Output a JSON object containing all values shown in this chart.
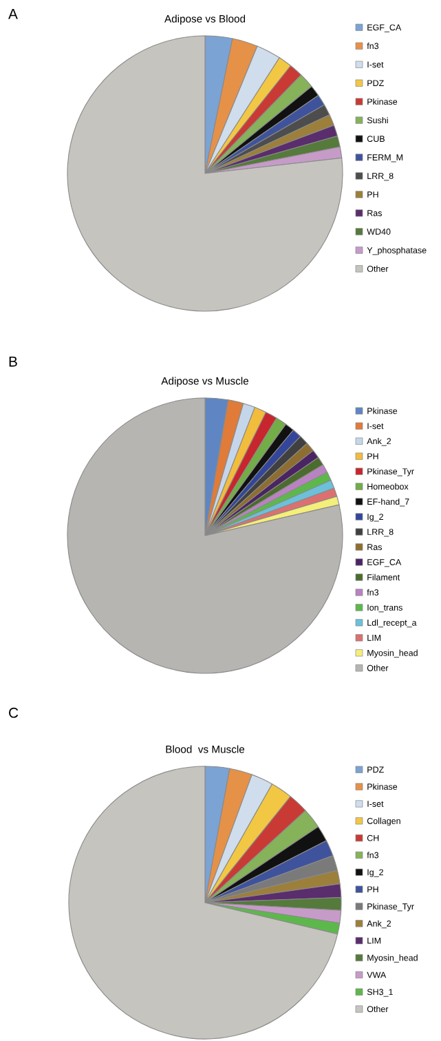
{
  "chart_data": [
    {
      "type": "pie",
      "title": "Adipose vs Blood",
      "annotations": [
        "A"
      ],
      "legend": "right",
      "categories": [
        "EGF_CA",
        "fn3",
        "I-set",
        "PDZ",
        "Pkinase",
        "Sushi",
        "CUB",
        "FERM_M",
        "LRR_8",
        "PH",
        "Ras",
        "WD40",
        "Y_phosphatase",
        "Other"
      ],
      "values": [
        3.2,
        3.0,
        2.9,
        1.6,
        1.6,
        1.8,
        1.3,
        1.3,
        1.3,
        1.3,
        1.3,
        1.3,
        1.3,
        76.8
      ],
      "colors": [
        "#7ba3d4",
        "#e69148",
        "#cfdded",
        "#f2c744",
        "#c93a35",
        "#86b25a",
        "#111111",
        "#3f539d",
        "#4d4d4d",
        "#9c7f3a",
        "#5a2d6c",
        "#557a3c",
        "#c69bc8",
        "#c6c4bf"
      ]
    },
    {
      "type": "pie",
      "title": "Adipose vs Muscle",
      "annotations": [
        "B"
      ],
      "legend": "right",
      "categories": [
        "Pkinase",
        "I-set",
        "Ank_2",
        "PH",
        "Pkinase_Tyr",
        "Homeobox",
        "EF-hand_7",
        "Ig_2",
        "LRR_8",
        "Ras",
        "EGF_CA",
        "Filament",
        "fn3",
        "Ion_trans",
        "Ldl_recept_a",
        "LIM",
        "Myosin_head",
        "Other"
      ],
      "values": [
        2.7,
        1.8,
        1.4,
        1.4,
        1.4,
        1.3,
        1.1,
        1.1,
        1.1,
        1.1,
        1.0,
        1.0,
        1.0,
        1.0,
        1.0,
        1.0,
        1.0,
        78.6
      ],
      "colors": [
        "#5f86c2",
        "#e07b39",
        "#c5d6ea",
        "#f2bc3c",
        "#c8262e",
        "#72ad48",
        "#111111",
        "#34469a",
        "#404040",
        "#8e6e30",
        "#4b2463",
        "#4c6b2e",
        "#b883c0",
        "#5db84b",
        "#6cc0d9",
        "#dc7070",
        "#f4ee7a",
        "#b7b5b1"
      ]
    },
    {
      "type": "pie",
      "title": "Blood  vs Muscle",
      "annotations": [
        "C"
      ],
      "legend": "right",
      "categories": [
        "PDZ",
        "Pkinase",
        "I-set",
        "Collagen",
        "CH",
        "fn3",
        "Ig_2",
        "PH",
        "Pkinase_Tyr",
        "Ank_2",
        "LIM",
        "Myosin_head",
        "VWA",
        "SH3_1",
        "Other"
      ],
      "values": [
        2.9,
        2.7,
        2.6,
        2.6,
        2.4,
        2.4,
        1.9,
        1.9,
        1.8,
        1.6,
        1.6,
        1.5,
        1.5,
        1.3,
        71.3
      ],
      "colors": [
        "#7ba3d4",
        "#e69148",
        "#cfdded",
        "#f2c744",
        "#c93a35",
        "#86b25a",
        "#111111",
        "#3f539d",
        "#7a7a7a",
        "#9c7f3a",
        "#5a2d6c",
        "#557a3c",
        "#c69bc8",
        "#5db84b",
        "#c6c4bf"
      ]
    }
  ]
}
